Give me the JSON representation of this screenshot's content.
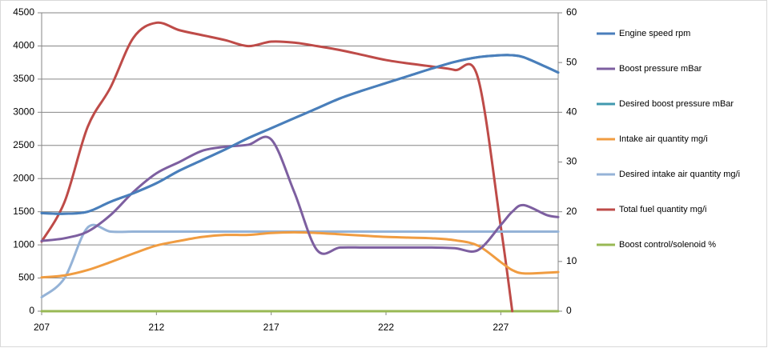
{
  "chart_data": {
    "type": "line",
    "x": [
      207,
      208,
      209,
      210,
      211,
      212,
      213,
      214,
      215,
      216,
      217,
      218,
      219,
      220,
      221,
      222,
      223,
      224,
      225,
      226,
      227,
      227.5,
      228,
      229,
      229.5
    ],
    "xlim": [
      207,
      229.5
    ],
    "xticks": [
      207,
      212,
      217,
      222,
      227
    ],
    "ylim": [
      0,
      4500
    ],
    "yticks": [
      0,
      500,
      1000,
      1500,
      2000,
      2500,
      3000,
      3500,
      4000,
      4500
    ],
    "y2lim": [
      0,
      60
    ],
    "y2ticks": [
      0,
      10,
      20,
      30,
      40,
      50,
      60
    ],
    "grid": true,
    "legend": "right",
    "series": [
      {
        "name": "Engine speed rpm",
        "color": "#4a7ebb",
        "values": [
          1480,
          1470,
          1500,
          1650,
          1780,
          1930,
          2120,
          2280,
          2440,
          2610,
          2760,
          2910,
          3060,
          3210,
          3330,
          3440,
          3550,
          3660,
          3760,
          3830,
          3860,
          3860,
          3830,
          3680,
          3600
        ]
      },
      {
        "name": "Boost pressure mBar",
        "color": "#7d5fa0",
        "values": [
          1060,
          1100,
          1200,
          1450,
          1800,
          2080,
          2250,
          2420,
          2480,
          2510,
          2590,
          1800,
          920,
          960,
          960,
          960,
          960,
          960,
          950,
          920,
          1300,
          1500,
          1600,
          1450,
          1420
        ]
      },
      {
        "name": "Desired boost pressure mBar",
        "color": "#4198af",
        "values": [
          1480,
          1470,
          1500,
          1650,
          1780,
          1930,
          2120,
          2280,
          2440,
          2610,
          2760,
          2910,
          3060,
          3210,
          3330,
          3440,
          3550,
          3660,
          3760,
          3830,
          3860,
          3860,
          3830,
          3680,
          3600
        ]
      },
      {
        "name": "Intake air quantity mg/i",
        "color": "#f09c41",
        "values": [
          510,
          540,
          620,
          740,
          870,
          990,
          1060,
          1120,
          1150,
          1150,
          1180,
          1190,
          1180,
          1160,
          1140,
          1120,
          1110,
          1100,
          1070,
          990,
          740,
          620,
          570,
          580,
          590
        ]
      },
      {
        "name": "Desired intake air quantity  mg/i",
        "color": "#95b3d7",
        "values": [
          210,
          500,
          1260,
          1200,
          1200,
          1200,
          1200,
          1200,
          1200,
          1200,
          1200,
          1200,
          1200,
          1200,
          1200,
          1200,
          1200,
          1200,
          1200,
          1200,
          1200,
          1200,
          1200,
          1200,
          1200
        ]
      },
      {
        "name": "Total fuel quantity  mg/i",
        "color": "#be4b48",
        "axis": "y2",
        "values": [
          14,
          22,
          37,
          45,
          55,
          58,
          56.5,
          55.5,
          54.5,
          53.3,
          54.2,
          54,
          53.3,
          52.5,
          51.5,
          50.5,
          49.8,
          49.2,
          48.5,
          47,
          17,
          0,
          null,
          null,
          null
        ]
      },
      {
        "name": "Boost control/solenoid %",
        "color": "#98b954",
        "axis": "y2",
        "values": [
          0,
          0,
          0,
          0,
          0,
          0,
          0,
          0,
          0,
          0,
          0,
          0,
          0,
          0,
          0,
          0,
          0,
          0,
          0,
          0,
          0,
          0,
          0,
          0,
          0
        ]
      }
    ]
  }
}
